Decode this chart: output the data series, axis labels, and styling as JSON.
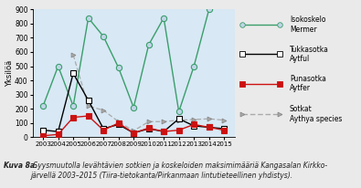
{
  "years": [
    2003,
    2004,
    2005,
    2006,
    2007,
    2008,
    2009,
    2010,
    2011,
    2012,
    2013,
    2014,
    2015
  ],
  "isokoskelo": [
    220,
    500,
    220,
    840,
    710,
    490,
    210,
    650,
    840,
    180,
    500,
    900,
    null
  ],
  "tukkasotka": [
    50,
    40,
    450,
    260,
    60,
    90,
    30,
    60,
    40,
    130,
    80,
    70,
    60
  ],
  "punasotka": [
    10,
    20,
    140,
    150,
    50,
    100,
    30,
    65,
    40,
    50,
    90,
    70,
    50
  ],
  "sotkat": [
    null,
    null,
    580,
    220,
    190,
    110,
    45,
    110,
    110,
    120,
    125,
    130,
    120
  ],
  "ylabel": "Yksilöä",
  "ylim": [
    0,
    900
  ],
  "yticks": [
    0,
    100,
    200,
    300,
    400,
    500,
    600,
    700,
    800,
    900
  ],
  "legend_isokoskelo": "Isokoskelo\nMermer",
  "legend_tukkasotka": "Tukkasotka\nAytful",
  "legend_punasotka": "Punasotka\nAytfer",
  "legend_sotkat": "Sotkat\nAythya species",
  "caption_bold": "Kuva 8a.",
  "caption_italic": " Syysmuutolla levähtävien sotkien ja koskeloiden maksimimääriä Kangasalan Kirkko-\njärvellä 2003–2015 (Tiira-tietokanta/Pirkanmaan lintutieteellinen yhdistys).",
  "color_isokoskelo": "#3a9e6a",
  "color_tukkasotka": "#000000",
  "color_punasotka": "#cc1111",
  "color_sotkat": "#aaaaaa",
  "bg_color": "#d8e8f5",
  "fig_bg": "#eaeaea"
}
